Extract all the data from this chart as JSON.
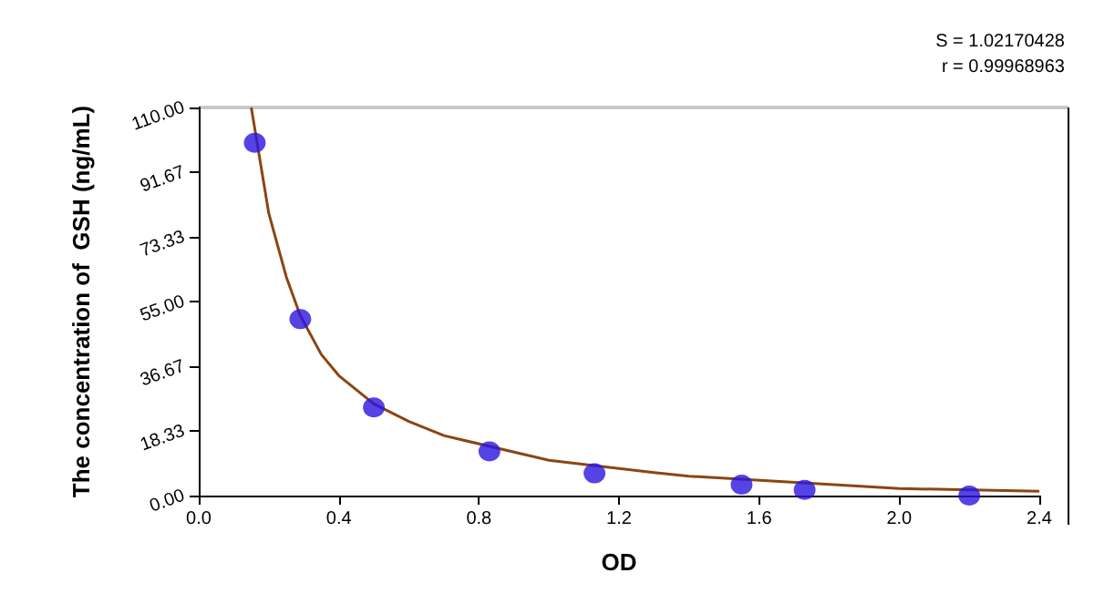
{
  "chart_data": {
    "type": "scatter",
    "xlabel": "OD",
    "ylabel": "The concentration of  GSH (ng/mL)",
    "annotations": [
      "S = 1.02170428",
      "r = 0.99968963"
    ],
    "series": [
      {
        "type": "line",
        "color": "#8b4513",
        "marker": "none",
        "x": [
          0.15,
          0.2,
          0.25,
          0.29,
          0.35,
          0.4,
          0.5,
          0.6,
          0.7,
          1.0,
          1.3,
          1.4,
          2.0,
          2.4
        ],
        "values": [
          110,
          80,
          62,
          51,
          40,
          34,
          26,
          21,
          17,
          10,
          6.5,
          5.5,
          2,
          1.2
        ]
      },
      {
        "color": "#2a14e0",
        "marker": "circle",
        "x": [
          0.16,
          0.29,
          0.5,
          0.83,
          1.13,
          1.55,
          1.73,
          2.2
        ],
        "values": [
          100,
          50,
          25,
          12.5,
          6.3,
          3.1,
          1.6,
          0
        ]
      }
    ],
    "xlim": [
      0,
      2.4
    ],
    "xticks": [
      {
        "value": 0,
        "label": "0.0"
      },
      0.4,
      0.8,
      1.2,
      1.6,
      {
        "value": 2,
        "label": "2.0"
      },
      2.4
    ],
    "ylim": [
      0,
      110
    ],
    "yticks": [
      {
        "value": 0,
        "label": "0.00"
      },
      18.33,
      36.67,
      {
        "value": 55,
        "label": "55.00"
      },
      73.33,
      91.67,
      {
        "value": 110,
        "label": "110.00"
      }
    ],
    "grid": false
  }
}
